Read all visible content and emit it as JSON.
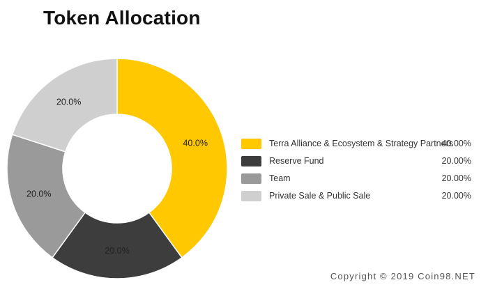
{
  "chart_data": {
    "type": "pie",
    "title": "Token Allocation",
    "series": [
      {
        "name": "Terra Alliance & Ecosystem & Strategy Partners",
        "value": 40.0,
        "label": "40.0%",
        "legend_value": "40.00%",
        "color": "#ffc800"
      },
      {
        "name": "Reserve Fund",
        "value": 20.0,
        "label": "20.0%",
        "legend_value": "20.00%",
        "color": "#3d3d3d"
      },
      {
        "name": "Team",
        "value": 20.0,
        "label": "20.0%",
        "legend_value": "20.00%",
        "color": "#9a9a9a"
      },
      {
        "name": "Private Sale & Public Sale",
        "value": 20.0,
        "label": "20.0%",
        "legend_value": "20.00%",
        "color": "#cfcfcf"
      }
    ],
    "legend_position": "right"
  },
  "footer": {
    "copyright": "Copyright © 2019 Coin98.NET"
  }
}
